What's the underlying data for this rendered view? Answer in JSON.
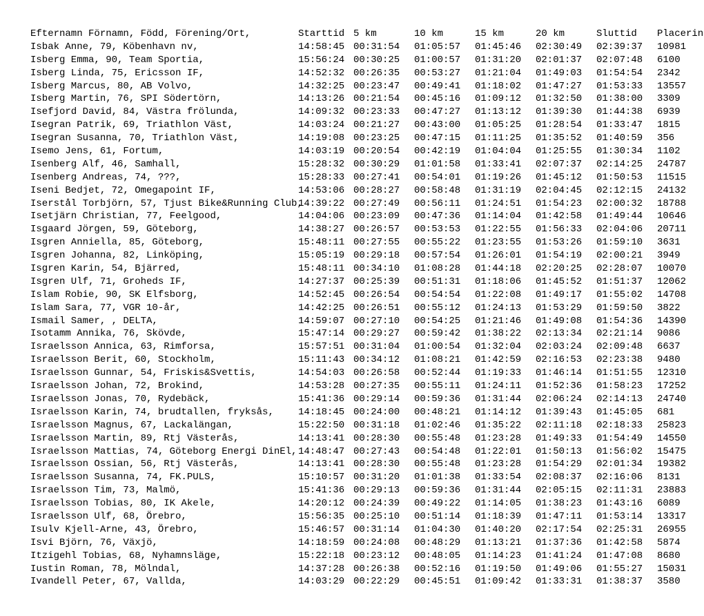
{
  "header": {
    "name": "Efternamn Förnamn, Född, Förening/Ort,",
    "start": "Starttid",
    "k5": "5  km",
    "k10": "10 km",
    "k15": "15 km",
    "k20": "20 km",
    "end": "Sluttid",
    "place": "Placering"
  },
  "rows": [
    {
      "name": "Isbak Anne, 79, Köbenhavn nv,",
      "start": "14:58:45",
      "k5": "00:31:54",
      "k10": "01:05:57",
      "k15": "01:45:46",
      "k20": "02:30:49",
      "end": "02:39:37",
      "place": "10981"
    },
    {
      "name": "Isberg Emma, 90, Team Sportia,",
      "start": "15:56:24",
      "k5": "00:30:25",
      "k10": "01:00:57",
      "k15": "01:31:20",
      "k20": "02:01:37",
      "end": "02:07:48",
      "place": "6100"
    },
    {
      "name": "Isberg Linda, 75, Ericsson IF,",
      "start": "14:52:32",
      "k5": "00:26:35",
      "k10": "00:53:27",
      "k15": "01:21:04",
      "k20": "01:49:03",
      "end": "01:54:54",
      "place": "2342"
    },
    {
      "name": "Isberg Marcus, 80, AB Volvo,",
      "start": "14:32:25",
      "k5": "00:23:47",
      "k10": "00:49:41",
      "k15": "01:18:02",
      "k20": "01:47:27",
      "end": "01:53:33",
      "place": "13557"
    },
    {
      "name": "Isberg Martin, 76, SPI Södertörn,",
      "start": "14:13:26",
      "k5": "00:21:54",
      "k10": "00:45:16",
      "k15": "01:09:12",
      "k20": "01:32:50",
      "end": "01:38:00",
      "place": "3309"
    },
    {
      "name": "Isefjord David, 84, Västra frölunda,",
      "start": "14:09:32",
      "k5": "00:23:33",
      "k10": "00:47:27",
      "k15": "01:13:12",
      "k20": "01:39:30",
      "end": "01:44:38",
      "place": "6939"
    },
    {
      "name": "Isegran Patrik, 69, Triathlon Väst,",
      "start": "14:03:24",
      "k5": "00:21:27",
      "k10": "00:43:00",
      "k15": "01:05:25",
      "k20": "01:28:54",
      "end": "01:33:47",
      "place": "1815"
    },
    {
      "name": "Isegran Susanna, 70, Triathlon Väst,",
      "start": "14:19:08",
      "k5": "00:23:25",
      "k10": "00:47:15",
      "k15": "01:11:25",
      "k20": "01:35:52",
      "end": "01:40:59",
      "place": "356"
    },
    {
      "name": "Isemo Jens, 61, Fortum,",
      "start": "14:03:19",
      "k5": "00:20:54",
      "k10": "00:42:19",
      "k15": "01:04:04",
      "k20": "01:25:55",
      "end": "01:30:34",
      "place": "1102"
    },
    {
      "name": "Isenberg Alf, 46, Samhall,",
      "start": "15:28:32",
      "k5": "00:30:29",
      "k10": "01:01:58",
      "k15": "01:33:41",
      "k20": "02:07:37",
      "end": "02:14:25",
      "place": "24787"
    },
    {
      "name": "Isenberg Andreas, 74, ???,",
      "start": "15:28:33",
      "k5": "00:27:41",
      "k10": "00:54:01",
      "k15": "01:19:26",
      "k20": "01:45:12",
      "end": "01:50:53",
      "place": "11515"
    },
    {
      "name": "Iseni Bedjet, 72, Omegapoint IF,",
      "start": "14:53:06",
      "k5": "00:28:27",
      "k10": "00:58:48",
      "k15": "01:31:19",
      "k20": "02:04:45",
      "end": "02:12:15",
      "place": "24132"
    },
    {
      "name": "Iserstål Torbjörn, 57, Tjust Bike&Running Club,",
      "start": "14:39:22",
      "k5": "00:27:49",
      "k10": "00:56:11",
      "k15": "01:24:51",
      "k20": "01:54:23",
      "end": "02:00:32",
      "place": "18788"
    },
    {
      "name": "Isetjärn Christian, 77, Feelgood,",
      "start": "14:04:06",
      "k5": "00:23:09",
      "k10": "00:47:36",
      "k15": "01:14:04",
      "k20": "01:42:58",
      "end": "01:49:44",
      "place": "10646"
    },
    {
      "name": "Isgaard Jörgen, 59, Göteborg,",
      "start": "14:38:27",
      "k5": "00:26:57",
      "k10": "00:53:53",
      "k15": "01:22:55",
      "k20": "01:56:33",
      "end": "02:04:06",
      "place": "20711"
    },
    {
      "name": "Isgren Anniella, 85, Göteborg,",
      "start": "15:48:11",
      "k5": "00:27:55",
      "k10": "00:55:22",
      "k15": "01:23:55",
      "k20": "01:53:26",
      "end": "01:59:10",
      "place": "3631"
    },
    {
      "name": "Isgren Johanna, 82, Linköping,",
      "start": "15:05:19",
      "k5": "00:29:18",
      "k10": "00:57:54",
      "k15": "01:26:01",
      "k20": "01:54:19",
      "end": "02:00:21",
      "place": "3949"
    },
    {
      "name": "Isgren Karin, 54, Bjärred,",
      "start": "15:48:11",
      "k5": "00:34:10",
      "k10": "01:08:28",
      "k15": "01:44:18",
      "k20": "02:20:25",
      "end": "02:28:07",
      "place": "10070"
    },
    {
      "name": "Isgren Ulf, 71, Groheds IF,",
      "start": "14:27:37",
      "k5": "00:25:39",
      "k10": "00:51:31",
      "k15": "01:18:06",
      "k20": "01:45:52",
      "end": "01:51:37",
      "place": "12062"
    },
    {
      "name": "Islam Robie, 90, SK Elfsborg,",
      "start": "14:52:45",
      "k5": "00:26:54",
      "k10": "00:54:54",
      "k15": "01:22:08",
      "k20": "01:49:17",
      "end": "01:55:02",
      "place": "14708"
    },
    {
      "name": "Islam Sara, 77, VGR 10-år,",
      "start": "14:42:25",
      "k5": "00:26:51",
      "k10": "00:55:12",
      "k15": "01:24:13",
      "k20": "01:53:29",
      "end": "01:59:50",
      "place": "3822"
    },
    {
      "name": "Ismail Samer, , DELTA,",
      "start": "14:59:07",
      "k5": "00:27:10",
      "k10": "00:54:25",
      "k15": "01:21:46",
      "k20": "01:49:08",
      "end": "01:54:36",
      "place": "14390"
    },
    {
      "name": "Isotamm Annika, 76, Skövde,",
      "start": "15:47:14",
      "k5": "00:29:27",
      "k10": "00:59:42",
      "k15": "01:38:22",
      "k20": "02:13:34",
      "end": "02:21:14",
      "place": "9086"
    },
    {
      "name": "Israelsson Annica, 63, Rimforsa,",
      "start": "15:57:51",
      "k5": "00:31:04",
      "k10": "01:00:54",
      "k15": "01:32:04",
      "k20": "02:03:24",
      "end": "02:09:48",
      "place": "6637"
    },
    {
      "name": "Israelsson Berit, 60, Stockholm,",
      "start": "15:11:43",
      "k5": "00:34:12",
      "k10": "01:08:21",
      "k15": "01:42:59",
      "k20": "02:16:53",
      "end": "02:23:38",
      "place": "9480"
    },
    {
      "name": "Israelsson Gunnar, 54, Friskis&Svettis,",
      "start": "14:54:03",
      "k5": "00:26:58",
      "k10": "00:52:44",
      "k15": "01:19:33",
      "k20": "01:46:14",
      "end": "01:51:55",
      "place": "12310"
    },
    {
      "name": "Israelsson Johan, 72, Brokind,",
      "start": "14:53:28",
      "k5": "00:27:35",
      "k10": "00:55:11",
      "k15": "01:24:11",
      "k20": "01:52:36",
      "end": "01:58:23",
      "place": "17252"
    },
    {
      "name": "Israelsson Jonas, 70, Rydebäck,",
      "start": "15:41:36",
      "k5": "00:29:14",
      "k10": "00:59:36",
      "k15": "01:31:44",
      "k20": "02:06:24",
      "end": "02:14:13",
      "place": "24740"
    },
    {
      "name": "Israelsson Karin, 74, brudtallen, fryksås,",
      "start": "14:18:45",
      "k5": "00:24:00",
      "k10": "00:48:21",
      "k15": "01:14:12",
      "k20": "01:39:43",
      "end": "01:45:05",
      "place": "681"
    },
    {
      "name": "Israelsson Magnus, 67, Lackalängan,",
      "start": "15:22:50",
      "k5": "00:31:18",
      "k10": "01:02:46",
      "k15": "01:35:22",
      "k20": "02:11:18",
      "end": "02:18:33",
      "place": "25823"
    },
    {
      "name": "Israelsson Martin, 89, Rtj Västerås,",
      "start": "14:13:41",
      "k5": "00:28:30",
      "k10": "00:55:48",
      "k15": "01:23:28",
      "k20": "01:49:33",
      "end": "01:54:49",
      "place": "14550"
    },
    {
      "name": "Israelsson Mattias, 74, Göteborg Energi DinEl,",
      "start": "14:48:47",
      "k5": "00:27:43",
      "k10": "00:54:48",
      "k15": "01:22:01",
      "k20": "01:50:13",
      "end": "01:56:02",
      "place": "15475"
    },
    {
      "name": "Israelsson Ossian, 56, Rtj Västerås,",
      "start": "14:13:41",
      "k5": "00:28:30",
      "k10": "00:55:48",
      "k15": "01:23:28",
      "k20": "01:54:29",
      "end": "02:01:34",
      "place": "19382"
    },
    {
      "name": "Israelsson Susanna, 74, FK.PULS,",
      "start": "15:10:57",
      "k5": "00:31:20",
      "k10": "01:01:38",
      "k15": "01:33:54",
      "k20": "02:08:37",
      "end": "02:16:06",
      "place": "8131"
    },
    {
      "name": "Israelsson Tim, 73, Malmö,",
      "start": "15:41:36",
      "k5": "00:29:13",
      "k10": "00:59:36",
      "k15": "01:31:44",
      "k20": "02:05:15",
      "end": "02:11:31",
      "place": "23883"
    },
    {
      "name": "Israelsson Tobias, 80, IK Akele,",
      "start": "14:20:12",
      "k5": "00:24:39",
      "k10": "00:49:22",
      "k15": "01:14:05",
      "k20": "01:38:23",
      "end": "01:43:16",
      "place": "6089"
    },
    {
      "name": "Israelsson Ulf, 68, Örebro,",
      "start": "15:56:35",
      "k5": "00:25:10",
      "k10": "00:51:14",
      "k15": "01:18:39",
      "k20": "01:47:11",
      "end": "01:53:14",
      "place": "13317"
    },
    {
      "name": "Isulv Kjell-Arne, 43, Örebro,",
      "start": "15:46:57",
      "k5": "00:31:14",
      "k10": "01:04:30",
      "k15": "01:40:20",
      "k20": "02:17:54",
      "end": "02:25:31",
      "place": "26955"
    },
    {
      "name": "Isvi Björn, 76, Växjö,",
      "start": "14:18:59",
      "k5": "00:24:08",
      "k10": "00:48:29",
      "k15": "01:13:21",
      "k20": "01:37:36",
      "end": "01:42:58",
      "place": "5874"
    },
    {
      "name": "Itzigehl Tobias, 68, Nyhamnsläge,",
      "start": "15:22:18",
      "k5": "00:23:12",
      "k10": "00:48:05",
      "k15": "01:14:23",
      "k20": "01:41:24",
      "end": "01:47:08",
      "place": "8680"
    },
    {
      "name": "Iustin Roman, 78, Mölndal,",
      "start": "14:37:28",
      "k5": "00:26:38",
      "k10": "00:52:16",
      "k15": "01:19:50",
      "k20": "01:49:06",
      "end": "01:55:27",
      "place": "15031"
    },
    {
      "name": "Ivandell Peter, 67, Vallda,",
      "start": "14:03:29",
      "k5": "00:22:29",
      "k10": "00:45:51",
      "k15": "01:09:42",
      "k20": "01:33:31",
      "end": "01:38:37",
      "place": "3580"
    }
  ]
}
